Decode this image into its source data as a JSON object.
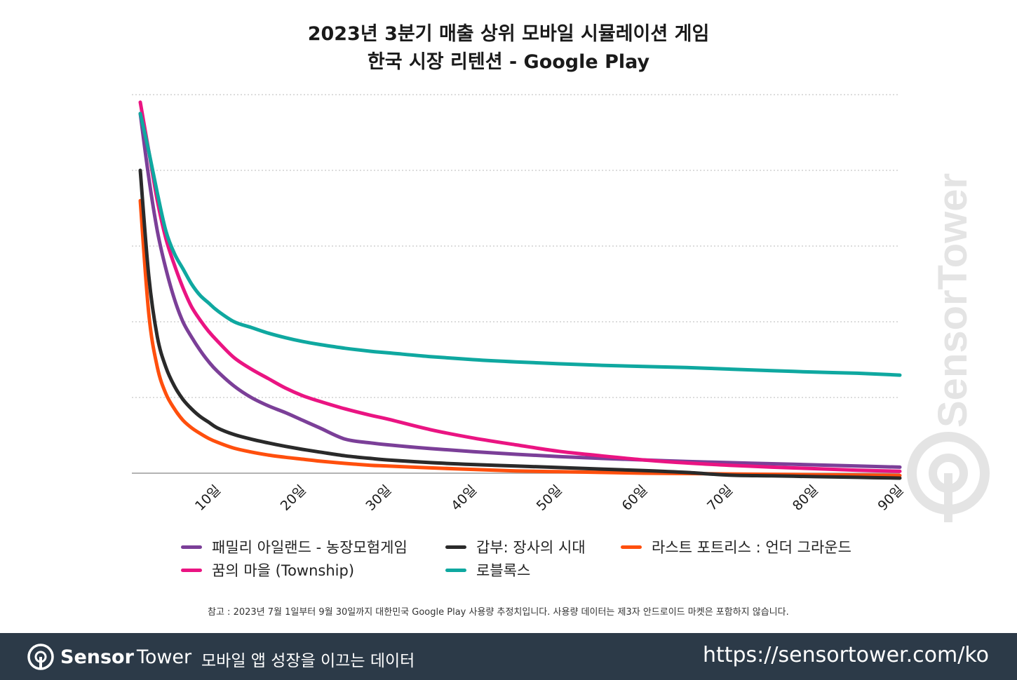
{
  "title_line1": "2023년 3분기 매출 상위 모바일 시뮬레이션 게임",
  "title_line2": "한국 시장 리텐션 - Google Play",
  "note": "참고 : 2023년 7월 1일부터 9월 30일까지 대한민국 Google Play 사용량 추정치입니다. 사용량 데이터는 제3자 안드로이드 마켓은 포함하지 않습니다.",
  "footer": {
    "brand_a": "Sensor",
    "brand_b": "Tower",
    "tagline": "모바일 앱 성장을 이끄는 데이터",
    "url": "https://sensortower.com/ko"
  },
  "watermark_text": "SensorTower",
  "chart_data": {
    "type": "line",
    "title": "2023년 3분기 매출 상위 모바일 시뮬레이션 게임 한국 시장 리텐션 - Google Play",
    "xlabel": "",
    "ylabel": "",
    "xlim": [
      1,
      90
    ],
    "ylim": [
      0,
      100
    ],
    "grid": true,
    "legend_position": "bottom",
    "x_ticks": [
      10,
      20,
      30,
      40,
      50,
      60,
      70,
      80,
      90
    ],
    "x_tick_labels": [
      "10일",
      "20일",
      "30일",
      "40일",
      "50일",
      "60일",
      "70일",
      "80일",
      "90일"
    ],
    "x": [
      1,
      2,
      3,
      4,
      5,
      6,
      7,
      8,
      9,
      10,
      12,
      14,
      16,
      18,
      20,
      22,
      25,
      28,
      30,
      35,
      40,
      45,
      50,
      55,
      60,
      65,
      70,
      75,
      80,
      85,
      90
    ],
    "series": [
      {
        "name": "패밀리 아일랜드 - 농장모험게임",
        "color": "#7b3f98",
        "values": [
          95,
          78,
          64,
          54,
          46,
          40,
          36,
          32.5,
          29.5,
          27,
          23,
          20,
          17.8,
          16,
          14,
          12,
          9,
          8,
          7.5,
          6.5,
          5.7,
          5,
          4.4,
          3.9,
          3.5,
          3.1,
          2.8,
          2.5,
          2.2,
          1.9,
          1.6
        ]
      },
      {
        "name": "갑부: 장사의 시대",
        "color": "#2a2a2a",
        "values": [
          80,
          52,
          36,
          28,
          23,
          19.5,
          17,
          15,
          13.5,
          12,
          10.2,
          9,
          8,
          7.1,
          6.3,
          5.6,
          4.6,
          3.9,
          3.5,
          2.8,
          2.3,
          1.9,
          1.5,
          1.1,
          0.7,
          0.2,
          -0.5,
          -0.7,
          -0.9,
          -1.1,
          -1.3
        ]
      },
      {
        "name": "라스트 포트리스 : 언더 그라운드",
        "color": "#ff4f0d",
        "values": [
          72,
          42,
          28,
          21,
          17,
          14,
          12,
          10.5,
          9.2,
          8.2,
          6.6,
          5.6,
          4.8,
          4.2,
          3.7,
          3.2,
          2.6,
          2.1,
          1.9,
          1.4,
          1.0,
          0.6,
          0.4,
          0.2,
          0,
          -0.1,
          -0.2,
          -0.3,
          -0.4,
          -0.5,
          -0.6
        ]
      },
      {
        "name": "꿈의 마을 (Township)",
        "color": "#ea1482",
        "values": [
          98,
          85,
          72,
          62,
          55,
          49,
          44,
          40.5,
          37.5,
          35,
          30.5,
          27.5,
          25,
          22.5,
          20.5,
          19,
          17,
          15.3,
          14.3,
          11.5,
          9.3,
          7.5,
          5.8,
          4.6,
          3.5,
          2.7,
          2.1,
          1.6,
          1.2,
          0.8,
          0.5
        ]
      },
      {
        "name": "로블록스",
        "color": "#0fa8a0",
        "values": [
          95,
          85,
          74,
          64,
          58,
          54,
          50,
          47,
          45,
          43,
          40,
          38.5,
          37,
          35.8,
          34.8,
          34,
          33,
          32.2,
          31.8,
          30.8,
          30,
          29.4,
          28.9,
          28.5,
          28.2,
          27.9,
          27.5,
          27.1,
          26.7,
          26.4,
          25.9
        ]
      }
    ]
  }
}
